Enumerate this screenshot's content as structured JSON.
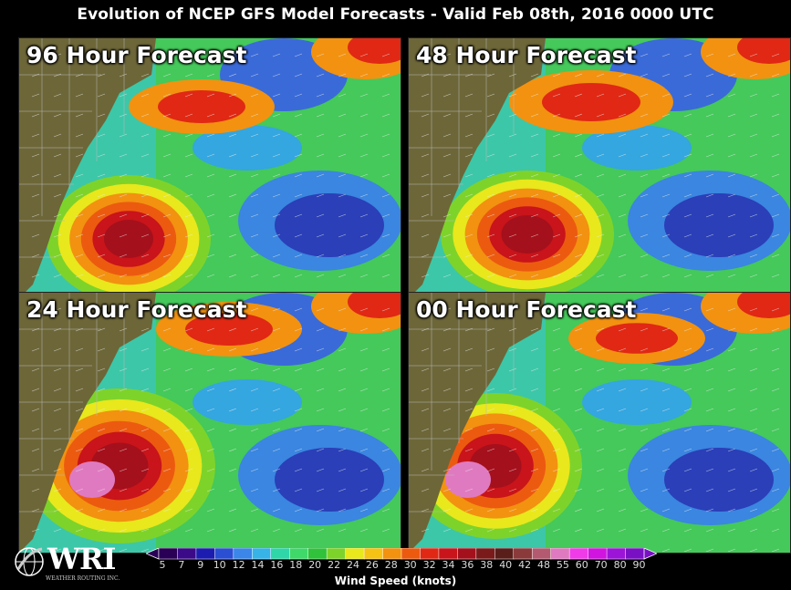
{
  "title": "Evolution of NCEP GFS Model Forecasts - Valid Feb 08th, 2016 0000 UTC",
  "panels": [
    {
      "label": "96 Hour Forecast"
    },
    {
      "label": "48 Hour Forecast"
    },
    {
      "label": "24 Hour Forecast"
    },
    {
      "label": "00 Hour Forecast"
    }
  ],
  "legend": {
    "title": "Wind Speed (knots)",
    "ticks": [
      "5",
      "7",
      "9",
      "10",
      "12",
      "14",
      "16",
      "18",
      "20",
      "22",
      "24",
      "26",
      "28",
      "30",
      "32",
      "34",
      "36",
      "38",
      "40",
      "42",
      "48",
      "55",
      "60",
      "70",
      "80",
      "90"
    ],
    "colors": [
      "#2a0057",
      "#3b0a88",
      "#1c1cb0",
      "#2a4fd2",
      "#3b86e8",
      "#37b3e8",
      "#2fd6a8",
      "#3fd96a",
      "#2fc23a",
      "#7ed32a",
      "#e8e81c",
      "#f6c214",
      "#f29210",
      "#ec5a10",
      "#e02814",
      "#c8141a",
      "#a4101c",
      "#7a1a1a",
      "#5a1e1a",
      "#8a3a3a",
      "#b45a70",
      "#e07ac0",
      "#f03ce8",
      "#d214e0",
      "#9c14d8",
      "#7a10c4"
    ]
  },
  "logo": {
    "name": "WRI",
    "subtitle": "WEATHER ROUTING INC."
  }
}
